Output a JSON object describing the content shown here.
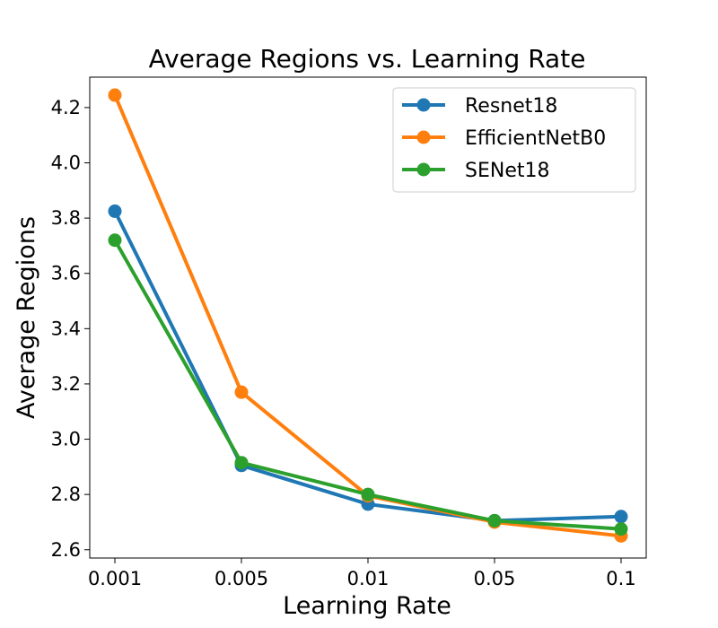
{
  "chart_data": {
    "type": "line",
    "title": "Average Regions vs. Learning Rate",
    "xlabel": "Learning Rate",
    "ylabel": "Average Regions",
    "categories": [
      "0.001",
      "0.005",
      "0.01",
      "0.05",
      "0.1"
    ],
    "ylim": [
      2.57,
      4.31
    ],
    "yticks": [
      "2.6",
      "2.8",
      "3.0",
      "3.2",
      "3.4",
      "3.6",
      "3.8",
      "4.0",
      "4.2"
    ],
    "grid": false,
    "legend_position": "top-right",
    "series": [
      {
        "name": "Resnet18",
        "color": "#1f77b4",
        "values": [
          3.825,
          2.905,
          2.765,
          2.705,
          2.72
        ]
      },
      {
        "name": "EfficientNetB0",
        "color": "#ff7f0e",
        "values": [
          4.245,
          3.17,
          2.795,
          2.7,
          2.65
        ]
      },
      {
        "name": "SENet18",
        "color": "#2ca02c",
        "values": [
          3.72,
          2.915,
          2.8,
          2.705,
          2.675
        ]
      }
    ]
  }
}
